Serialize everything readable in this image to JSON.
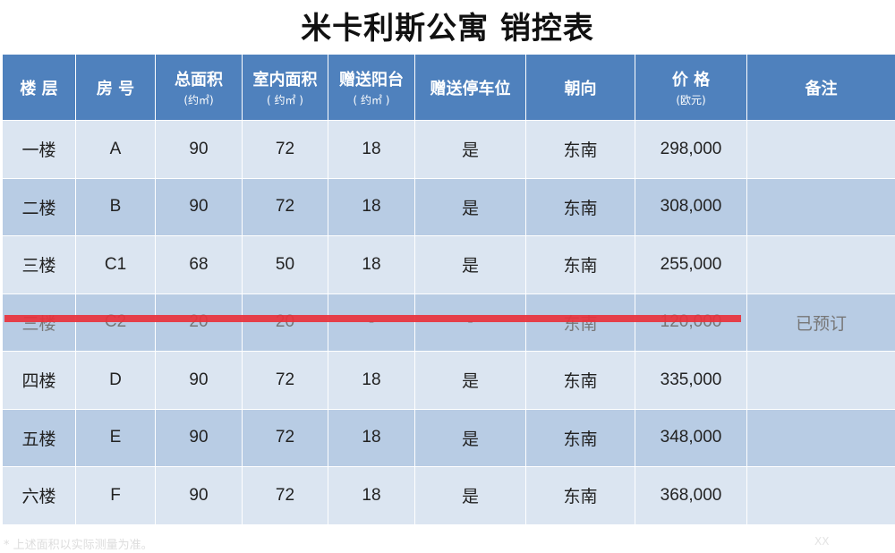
{
  "title": "米卡利斯公寓 销控表",
  "headers": [
    {
      "label": "楼 层",
      "sub": ""
    },
    {
      "label": "房 号",
      "sub": ""
    },
    {
      "label": "总面积",
      "sub": "(约㎡)"
    },
    {
      "label": "室内面积",
      "sub": "( 约㎡ )"
    },
    {
      "label": "赠送阳台",
      "sub": "( 约㎡ )"
    },
    {
      "label": "赠送停车位",
      "sub": ""
    },
    {
      "label": "朝向",
      "sub": ""
    },
    {
      "label": "价 格",
      "sub": "(欧元)"
    },
    {
      "label": "备注",
      "sub": ""
    }
  ],
  "rows": [
    {
      "cells": [
        "一楼",
        "A",
        "90",
        "72",
        "18",
        "是",
        "东南",
        "298,000",
        ""
      ],
      "struck": false
    },
    {
      "cells": [
        "二楼",
        "B",
        "90",
        "72",
        "18",
        "是",
        "东南",
        "308,000",
        ""
      ],
      "struck": false
    },
    {
      "cells": [
        "三楼",
        "C1",
        "68",
        "50",
        "18",
        "是",
        "东南",
        "255,000",
        ""
      ],
      "struck": false
    },
    {
      "cells": [
        "三楼",
        "C2",
        "20",
        "20",
        "-",
        "-",
        "东南",
        "120,000",
        "已预订"
      ],
      "struck": true
    },
    {
      "cells": [
        "四楼",
        "D",
        "90",
        "72",
        "18",
        "是",
        "东南",
        "335,000",
        ""
      ],
      "struck": false
    },
    {
      "cells": [
        "五楼",
        "E",
        "90",
        "72",
        "18",
        "是",
        "东南",
        "348,000",
        ""
      ],
      "struck": false
    },
    {
      "cells": [
        "六楼",
        "F",
        "90",
        "72",
        "18",
        "是",
        "东南",
        "368,000",
        ""
      ],
      "struck": false
    }
  ],
  "footnote": "* 上述面积以实际测量为准。",
  "page_mark": "XX",
  "colors": {
    "header": "#4f81bd",
    "row_light": "#dbe5f1",
    "row_dark": "#b8cce4",
    "strike": "#e8323c",
    "note": "#e21b1b"
  }
}
